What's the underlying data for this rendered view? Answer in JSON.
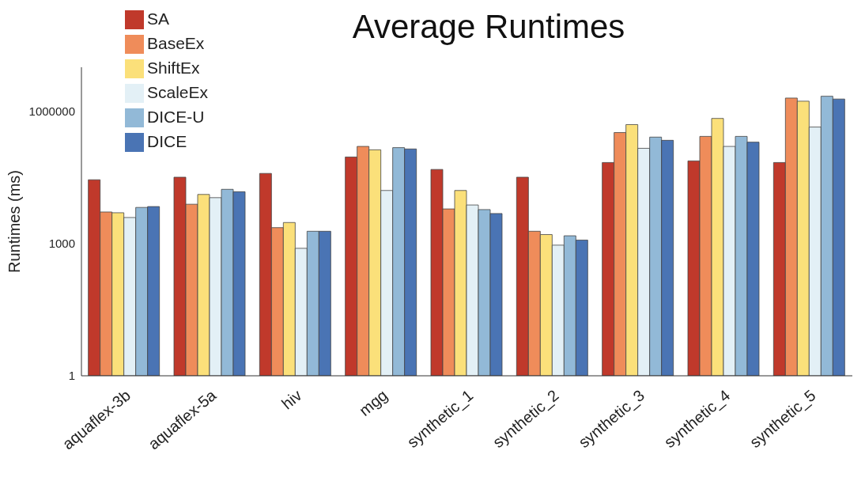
{
  "chart_data": {
    "type": "bar",
    "title": "Average Runtimes",
    "ylabel": "Runtimes (ms)",
    "log": true,
    "ylim": [
      1,
      10000000
    ],
    "yticks": [
      1,
      1000,
      1000000
    ],
    "grid": false,
    "legend": "top left",
    "categories": [
      "aquaflex-3b",
      "aquaflex-5a",
      "hiv",
      "mgg",
      "synthetic_1",
      "synthetic_2",
      "synthetic_3",
      "synthetic_4",
      "synthetic_5"
    ],
    "series": [
      {
        "name": "SA",
        "color": "#c0392b",
        "values": [
          28000,
          32000,
          39000,
          92000,
          48000,
          32000,
          69000,
          75000,
          69000
        ]
      },
      {
        "name": "BaseEx",
        "color": "#ef8c5a",
        "values": [
          5200,
          7800,
          2300,
          160000,
          6100,
          1900,
          330000,
          270000,
          2000000
        ]
      },
      {
        "name": "ShiftEx",
        "color": "#fbe07a",
        "values": [
          5000,
          13000,
          3000,
          134000,
          16000,
          1600,
          500000,
          690000,
          1700000
        ]
      },
      {
        "name": "ScaleEx",
        "color": "#e3f0f6",
        "values": [
          3900,
          11000,
          780,
          16000,
          7500,
          920,
          145000,
          160000,
          440000
        ]
      },
      {
        "name": "DICE-U",
        "color": "#92b9d7",
        "values": [
          6600,
          17000,
          1900,
          150000,
          5900,
          1500,
          260000,
          270000,
          2200000
        ]
      },
      {
        "name": "DICE",
        "color": "#4a74b4",
        "values": [
          6900,
          15000,
          1900,
          140000,
          4800,
          1200,
          220000,
          200000,
          1900000
        ]
      }
    ]
  }
}
